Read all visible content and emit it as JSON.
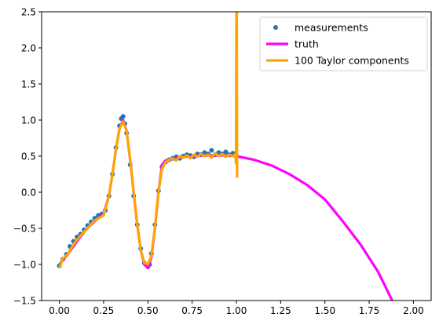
{
  "chart_data": {
    "type": "line",
    "title": "",
    "xlabel": "",
    "ylabel": "",
    "xlim": [
      -0.1,
      2.1
    ],
    "ylim": [
      -1.5,
      2.5
    ],
    "xticks": [
      0.0,
      0.25,
      0.5,
      0.75,
      1.0,
      1.25,
      1.5,
      1.75,
      2.0
    ],
    "xtick_labels": [
      "0.00",
      "0.25",
      "0.50",
      "0.75",
      "1.00",
      "1.25",
      "1.50",
      "1.75",
      "2.00"
    ],
    "yticks": [
      -1.5,
      -1.0,
      -0.5,
      0.0,
      0.5,
      1.0,
      1.5,
      2.0,
      2.5
    ],
    "ytick_labels": [
      "−1.5",
      "−1.0",
      "−0.5",
      "0.0",
      "0.5",
      "1.0",
      "1.5",
      "2.0",
      "2.5"
    ],
    "grid": false,
    "legend": {
      "placement": "top-right",
      "entries": [
        {
          "label": "measurements",
          "kind": "scatter"
        },
        {
          "label": "truth",
          "kind": "line"
        },
        {
          "label": "100 Taylor components",
          "kind": "line"
        }
      ]
    },
    "series": [
      {
        "name": "measurements",
        "kind": "scatter",
        "color": "#1f77b4",
        "x": [
          0.0,
          0.02,
          0.04,
          0.06,
          0.08,
          0.1,
          0.12,
          0.14,
          0.16,
          0.18,
          0.2,
          0.22,
          0.24,
          0.26,
          0.28,
          0.3,
          0.32,
          0.34,
          0.35,
          0.36,
          0.37,
          0.38,
          0.4,
          0.42,
          0.44,
          0.46,
          0.48,
          0.5,
          0.51,
          0.52,
          0.54,
          0.56,
          0.58,
          0.6,
          0.62,
          0.64,
          0.66,
          0.68,
          0.7,
          0.72,
          0.74,
          0.76,
          0.78,
          0.8,
          0.82,
          0.84,
          0.86,
          0.88,
          0.9,
          0.92,
          0.94,
          0.96,
          0.98,
          1.0
        ],
        "y": [
          -1.02,
          -0.93,
          -0.86,
          -0.75,
          -0.68,
          -0.62,
          -0.58,
          -0.52,
          -0.46,
          -0.41,
          -0.36,
          -0.32,
          -0.3,
          -0.25,
          -0.05,
          0.25,
          0.62,
          0.92,
          1.02,
          1.05,
          0.95,
          0.82,
          0.38,
          -0.05,
          -0.45,
          -0.78,
          -0.98,
          -1.03,
          -1.0,
          -0.85,
          -0.45,
          0.02,
          0.35,
          0.42,
          0.45,
          0.47,
          0.49,
          0.47,
          0.5,
          0.52,
          0.51,
          0.49,
          0.53,
          0.52,
          0.55,
          0.53,
          0.58,
          0.52,
          0.55,
          0.53,
          0.56,
          0.52,
          0.54,
          0.5
        ]
      },
      {
        "name": "truth",
        "kind": "line",
        "color": "#ff00ff",
        "x": [
          0.0,
          0.05,
          0.1,
          0.15,
          0.2,
          0.25,
          0.28,
          0.3,
          0.32,
          0.34,
          0.36,
          0.38,
          0.4,
          0.42,
          0.44,
          0.46,
          0.48,
          0.5,
          0.52,
          0.54,
          0.56,
          0.58,
          0.6,
          0.65,
          0.7,
          0.75,
          0.8,
          0.85,
          0.9,
          0.95,
          1.0,
          1.1,
          1.2,
          1.3,
          1.4,
          1.5,
          1.6,
          1.7,
          1.8,
          1.88
        ],
        "y": [
          -1.0,
          -0.85,
          -0.68,
          -0.52,
          -0.4,
          -0.3,
          -0.05,
          0.25,
          0.6,
          0.88,
          1.0,
          0.85,
          0.45,
          0.0,
          -0.45,
          -0.8,
          -1.0,
          -1.05,
          -0.9,
          -0.5,
          0.0,
          0.38,
          0.44,
          0.47,
          0.49,
          0.5,
          0.51,
          0.51,
          0.51,
          0.51,
          0.5,
          0.45,
          0.37,
          0.25,
          0.1,
          -0.1,
          -0.4,
          -0.72,
          -1.1,
          -1.5
        ]
      },
      {
        "name": "100 Taylor components",
        "kind": "line",
        "color": "#ffa500",
        "x": [
          0.0,
          0.02,
          0.05,
          0.08,
          0.1,
          0.15,
          0.2,
          0.25,
          0.28,
          0.3,
          0.32,
          0.34,
          0.36,
          0.38,
          0.4,
          0.42,
          0.44,
          0.46,
          0.48,
          0.5,
          0.52,
          0.54,
          0.56,
          0.58,
          0.6,
          0.62,
          0.64,
          0.66,
          0.68,
          0.7,
          0.72,
          0.74,
          0.76,
          0.78,
          0.8,
          0.82,
          0.84,
          0.86,
          0.88,
          0.9,
          0.92,
          0.94,
          0.96,
          0.98,
          0.99,
          0.995,
          0.998,
          1.0,
          1.002,
          1.004
        ],
        "y": [
          -1.05,
          -0.92,
          -0.85,
          -0.72,
          -0.66,
          -0.52,
          -0.39,
          -0.32,
          -0.05,
          0.25,
          0.6,
          0.88,
          0.98,
          0.85,
          0.45,
          0.0,
          -0.45,
          -0.8,
          -0.98,
          -1.0,
          -0.88,
          -0.48,
          0.0,
          0.33,
          0.42,
          0.45,
          0.47,
          0.44,
          0.5,
          0.48,
          0.51,
          0.47,
          0.52,
          0.49,
          0.53,
          0.5,
          0.52,
          0.48,
          0.54,
          0.5,
          0.53,
          0.49,
          0.52,
          0.5,
          0.52,
          0.48,
          0.4,
          2.6,
          2.6,
          0.2
        ]
      }
    ]
  }
}
